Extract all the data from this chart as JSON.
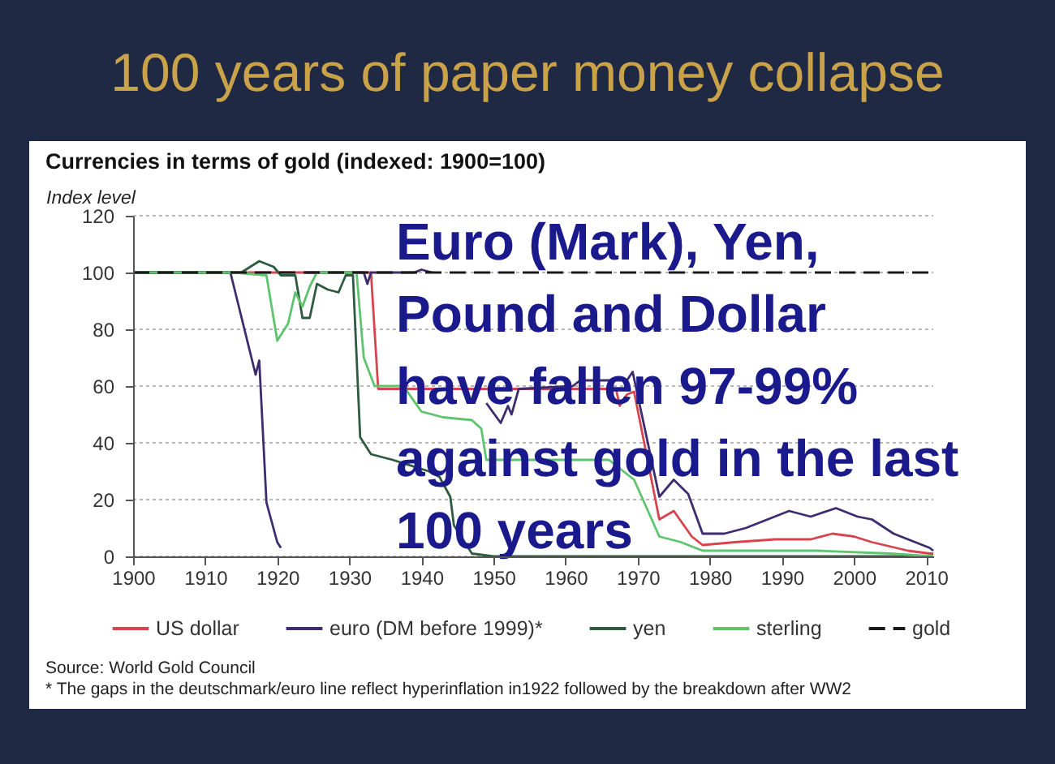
{
  "chart_data": {
    "type": "line",
    "title": "100 years of paper money collapse",
    "subtitle": "Currencies in terms of gold (indexed: 1900=100)",
    "ylabel": "Index level",
    "annotations": [
      "Euro (Mark), Yen,\nPound and Dollar\nhave fallen 97-99%\nagainst gold in the last\n100 years",
      "Source: World Gold Council",
      "* The gaps in the deutschmark/euro line reflect hyperinflation in1922 followed by the breakdown after WW2"
    ],
    "xlim": [
      1900,
      2011
    ],
    "xticks": [
      1900,
      1910,
      1920,
      1930,
      1940,
      1950,
      1960,
      1970,
      1980,
      1990,
      2000,
      2010
    ],
    "ylim": [
      0,
      120
    ],
    "yticks": [
      0,
      20,
      40,
      60,
      80,
      100,
      120
    ],
    "grid": "y",
    "legend": "bottom",
    "line_style": "solid",
    "series": [
      {
        "name": "US dollar",
        "color": "#d9434e",
        "x": [
          1900,
          1933,
          1934,
          1967,
          1967.5,
          1968.5,
          1969.5,
          1973,
          1975,
          1977.5,
          1979,
          1983.5,
          1989,
          1994,
          1997,
          2000,
          2002.5,
          2007.5,
          2010.5,
          2011
        ],
        "values": [
          100,
          100,
          59,
          59,
          53,
          57,
          58,
          13,
          16,
          7,
          4,
          5,
          6,
          6,
          8,
          7,
          5,
          2,
          1,
          1
        ]
      },
      {
        "name": "euro (DM before 1999)*",
        "color": "#3d2d6e",
        "x": [
          1900,
          1913.5,
          1917,
          1917.5,
          1918.5,
          1920,
          1920.5,
          1922,
          1924,
          1932,
          1932.5,
          1933,
          1939,
          1940,
          1941.5,
          1945,
          1949,
          1951,
          1952,
          1952.5,
          1953.5,
          1961,
          1962,
          1968.5,
          1969.3,
          1973,
          1975,
          1977,
          1979,
          1982,
          1985,
          1988,
          1991,
          1994,
          1997.5,
          2000.5,
          2002.5,
          2005.5,
          2008.5,
          2010.5,
          2011
        ],
        "values": [
          100,
          100,
          64,
          69,
          19,
          5,
          3,
          null,
          100,
          100,
          96,
          100,
          100,
          101,
          100,
          null,
          54,
          47,
          53,
          50,
          59,
          60,
          62,
          62,
          65,
          21,
          27,
          22,
          8,
          8,
          10,
          13,
          16,
          14,
          17,
          14,
          13,
          8,
          5,
          3,
          2
        ]
      },
      {
        "name": "yen",
        "color": "#2e5b40",
        "x": [
          1900,
          1915,
          1917.5,
          1919.5,
          1920.5,
          1922.5,
          1923.5,
          1924.5,
          1925.5,
          1927,
          1928.5,
          1929.5,
          1930.5,
          1931.5,
          1933,
          1936,
          1941,
          1942.5,
          1944,
          1944.5,
          1947,
          1950,
          2011
        ],
        "values": [
          100,
          100,
          104,
          102,
          99,
          99,
          84,
          84,
          96,
          94,
          93,
          99,
          99,
          42,
          36,
          34,
          30,
          28,
          21,
          11,
          1,
          0,
          0
        ]
      },
      {
        "name": "sterling",
        "color": "#5ec46e",
        "x": [
          1900,
          1914,
          1918.5,
          1920,
          1921.5,
          1922.5,
          1923.5,
          1924.5,
          1925.5,
          1931,
          1932,
          1933.5,
          1937.5,
          1940,
          1943,
          1947,
          1948.3,
          1949,
          1966,
          1967.5,
          1969.5,
          1973,
          1976,
          1979,
          1995,
          2005,
          2011
        ],
        "values": [
          100,
          100,
          99,
          76,
          82,
          93,
          88,
          95,
          100,
          100,
          70,
          60,
          60,
          51,
          49,
          48,
          45,
          34,
          34,
          31,
          27,
          7,
          5,
          2,
          2,
          1,
          0
        ]
      },
      {
        "name": "gold",
        "color": "#1a1a1a",
        "line_style": "dashed",
        "x": [
          1900,
          2011
        ],
        "values": [
          100,
          100
        ]
      }
    ]
  }
}
